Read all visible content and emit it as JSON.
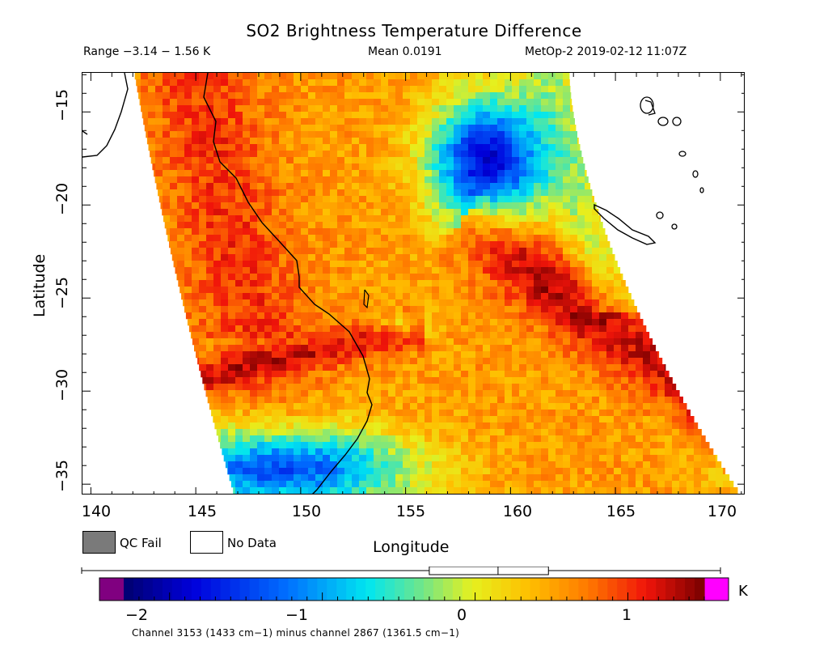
{
  "header": {
    "title": "SO2 Brightness Temperature Difference",
    "range": "Range −3.14 − 1.56 K",
    "mean": "Mean 0.0191",
    "satellite_time": "MetOp-2 2019-02-12 11:07Z"
  },
  "axes": {
    "x_label": "Longitude",
    "y_label": "Latitude",
    "x_ticks": [
      "140",
      "145",
      "150",
      "155",
      "160",
      "165",
      "170"
    ],
    "y_ticks": [
      "−15",
      "−20",
      "−25",
      "−30",
      "−35"
    ],
    "x_range": [
      139.6,
      171.2
    ],
    "y_range": [
      -12.9,
      -35.6
    ]
  },
  "legend": {
    "qc_fail": "QC Fail",
    "no_data": "No Data",
    "qc_fail_color": "#7a7a7a",
    "no_data_color": "#ffffff"
  },
  "colorbar": {
    "ticks": [
      "−2",
      "−1",
      "0",
      "1"
    ],
    "range": [
      -2.3,
      1.5
    ],
    "unit": "K",
    "under_color": "#800080",
    "over_color": "#ff00ff",
    "box_plot": {
      "min": -3.14,
      "q1": -0.3,
      "median": 0.15,
      "q3": 0.48,
      "max": 1.56
    }
  },
  "footer": {
    "channel_note": "Channel 3153 (1433 cm−1) minus channel 2867 (1361.5 cm−1)"
  }
}
